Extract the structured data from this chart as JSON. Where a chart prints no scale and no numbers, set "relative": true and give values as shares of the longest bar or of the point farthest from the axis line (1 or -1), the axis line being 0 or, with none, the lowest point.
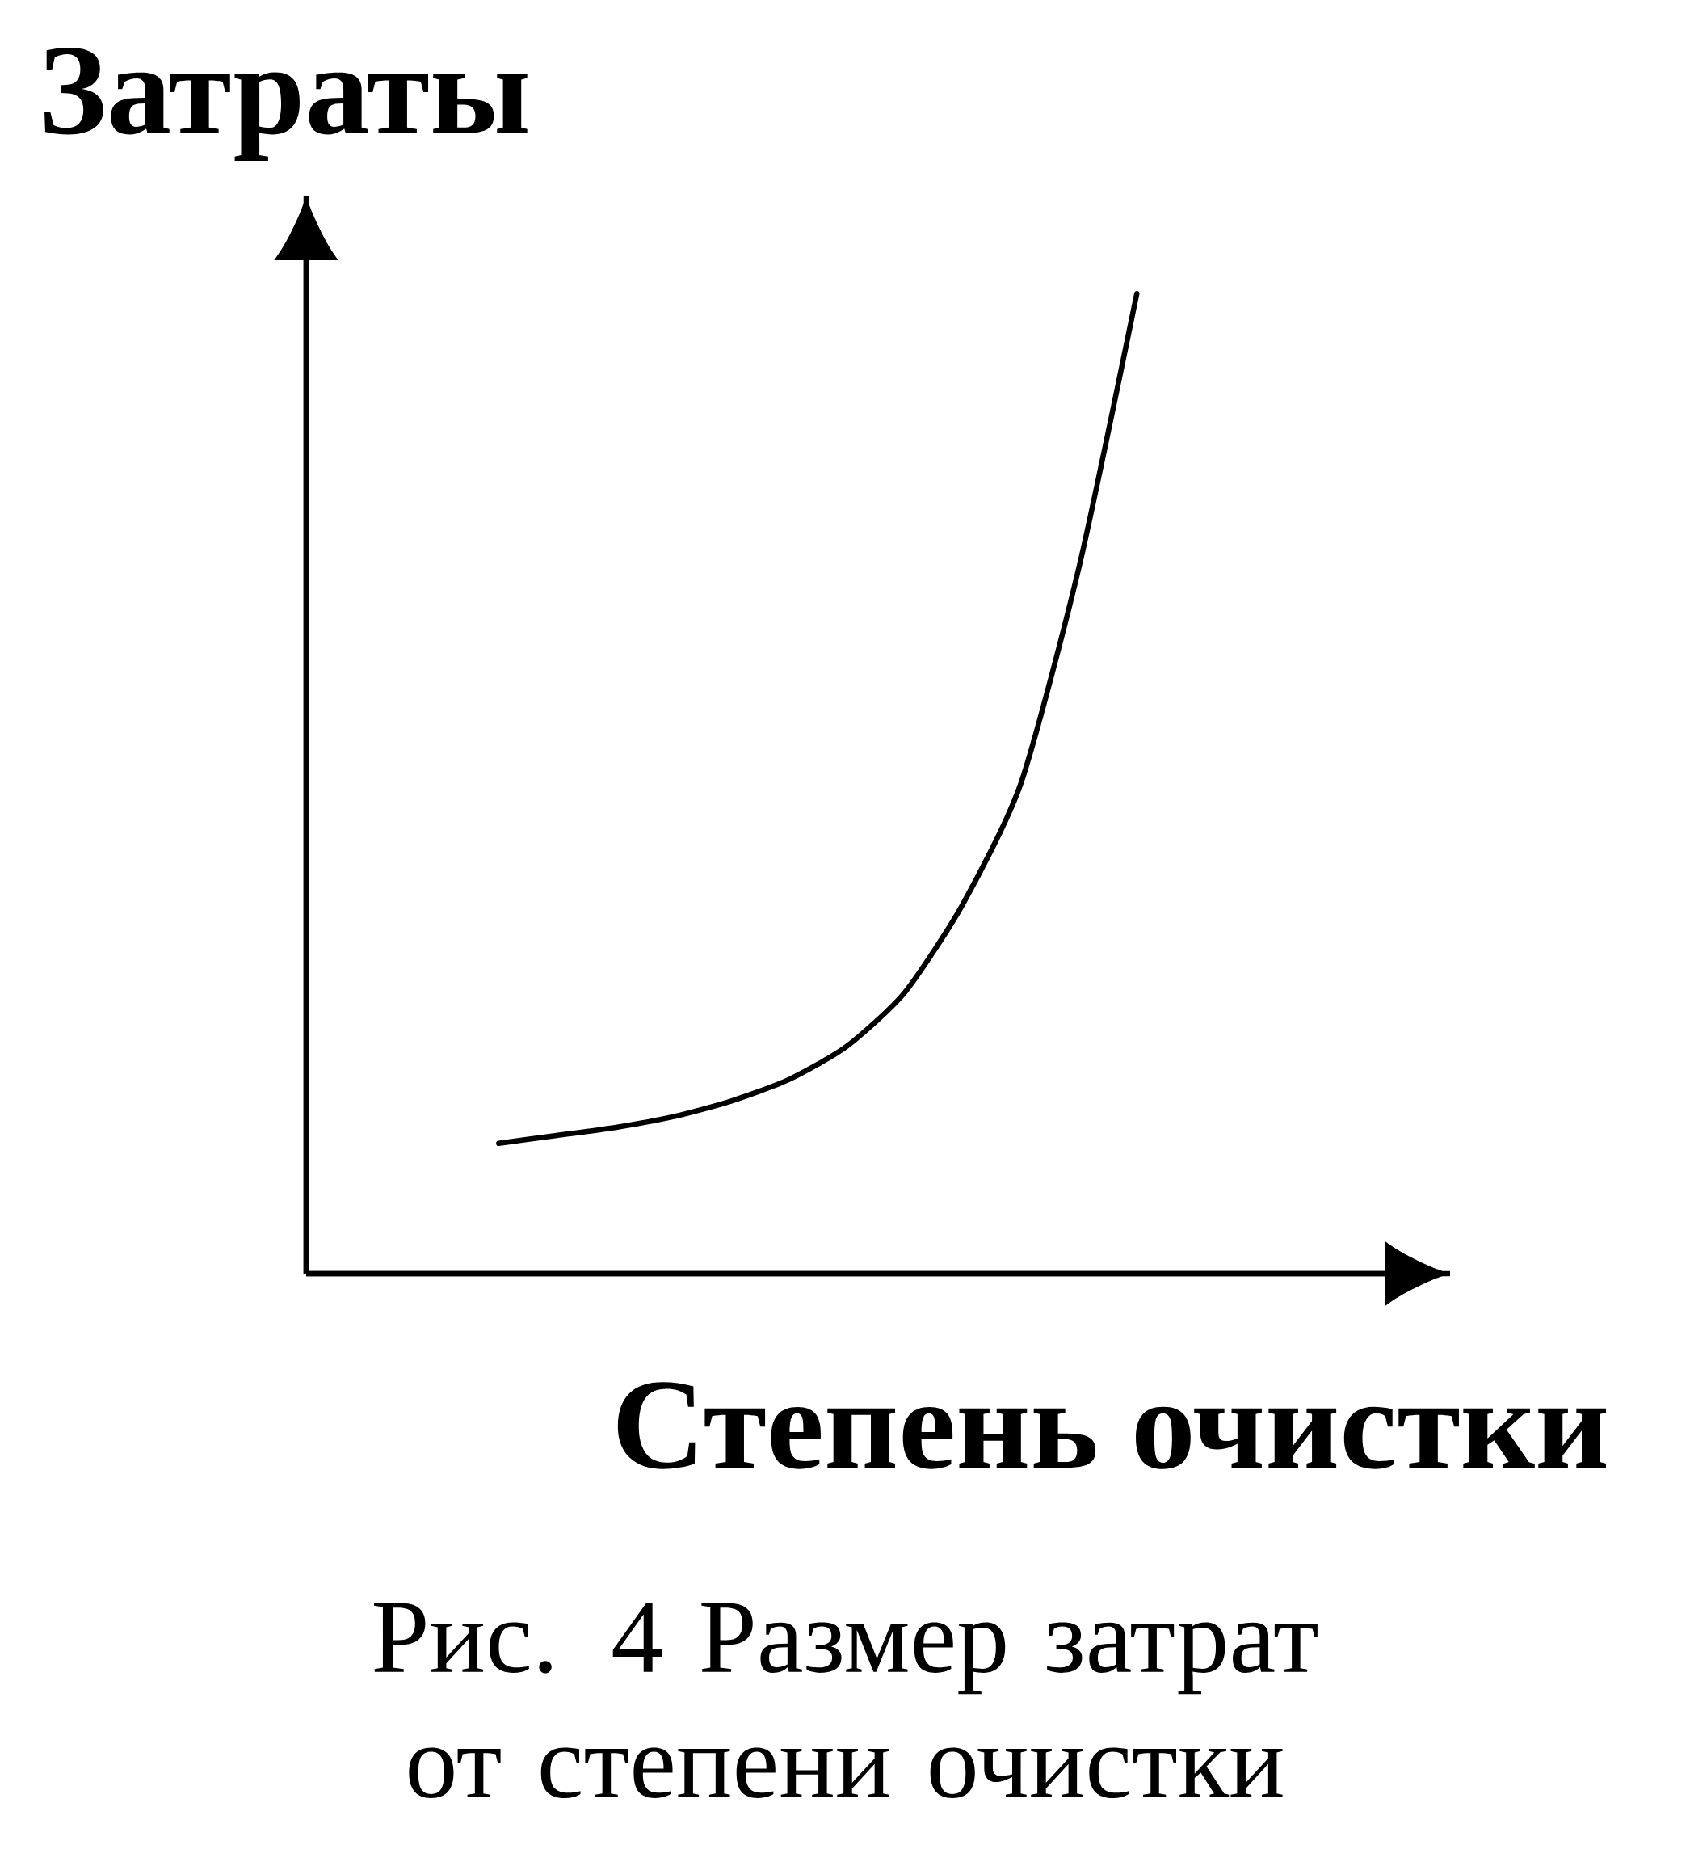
{
  "chart_data": {
    "type": "line",
    "relative": true,
    "ylabel": "Затраты",
    "xlabel": "Степень очистки",
    "annotations": [
      "Рис. 4   Размер затрат от степени очистки"
    ],
    "categories": [
      null,
      null,
      null,
      null,
      null,
      null,
      null,
      null,
      null,
      null,
      null,
      null
    ],
    "series": [
      {
        "color": "#000000",
        "values": [
          0.133,
          0.141,
          0.149,
          0.16,
          0.176,
          0.198,
          0.232,
          0.287,
          0.377,
          0.5,
          0.72,
          1
        ]
      }
    ]
  }
}
